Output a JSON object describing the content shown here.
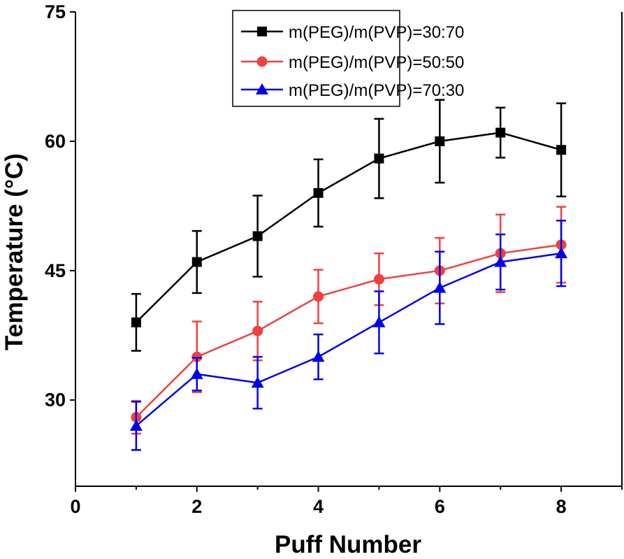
{
  "chart_data": {
    "type": "line",
    "title": "",
    "xlabel": "Puff Number",
    "ylabel": "Temperature (°C)",
    "xlim": [
      0,
      9
    ],
    "ylim": [
      20,
      75
    ],
    "xticks": [
      0,
      2,
      4,
      6,
      8
    ],
    "yticks": [
      30,
      45,
      60,
      75
    ],
    "grid": false,
    "legend_position": "top-left",
    "x": [
      1,
      2,
      3,
      4,
      5,
      6,
      7,
      8
    ],
    "series": [
      {
        "name": "m(PEG)/m(PVP)=30:70",
        "color": "#000000",
        "marker": "square",
        "values": [
          39,
          46,
          49,
          54,
          58,
          60,
          61,
          59
        ],
        "errors": [
          3.3,
          3.6,
          4.7,
          3.9,
          4.6,
          4.8,
          2.9,
          5.4
        ]
      },
      {
        "name": "m(PEG)/m(PVP)=50:50",
        "color": "#f04040",
        "marker": "circle",
        "values": [
          28,
          35,
          38,
          42,
          44,
          45,
          47,
          48
        ],
        "errors": [
          1.9,
          4.1,
          3.4,
          3.1,
          3.0,
          3.8,
          4.5,
          4.4
        ]
      },
      {
        "name": "m(PEG)/m(PVP)=70:30",
        "color": "#0000ee",
        "marker": "triangle",
        "values": [
          27,
          33,
          32,
          35,
          39,
          43,
          46,
          47
        ],
        "errors": [
          2.8,
          1.9,
          3.0,
          2.6,
          3.6,
          4.2,
          3.2,
          3.8
        ]
      }
    ]
  }
}
